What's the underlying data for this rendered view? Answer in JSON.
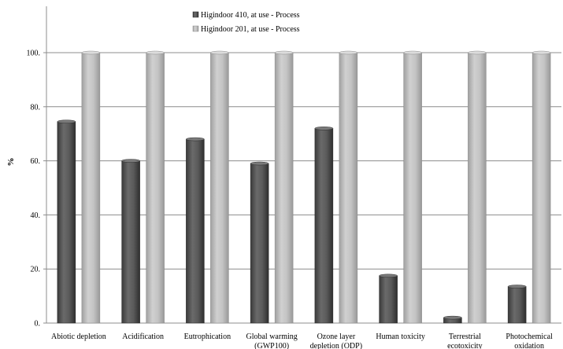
{
  "chart_data": {
    "type": "bar",
    "categories": [
      [
        "Abiotic depletion"
      ],
      [
        "Acidification"
      ],
      [
        "Eutrophication"
      ],
      [
        "Global warming",
        "(GWP100)"
      ],
      [
        "Ozone layer",
        "depletion (ODP)"
      ],
      [
        "Human toxicity"
      ],
      [
        "Terrestrial",
        "ecotoxicity"
      ],
      [
        "Photochemical",
        "oxidation"
      ]
    ],
    "series": [
      {
        "name": "Higindoor 410, at use - Process",
        "color": "#4d4d4d",
        "values": [
          74.5,
          60,
          68,
          59,
          72,
          17.5,
          2,
          13.5
        ]
      },
      {
        "name": "Higindoor 201, at use - Process",
        "color": "#b3b3b3",
        "values": [
          100,
          100,
          100,
          100,
          100,
          100,
          100,
          100
        ]
      }
    ],
    "ylabel": "%",
    "ylim": [
      0,
      100
    ],
    "yticks": [
      "0.",
      "20.",
      "40.",
      "60.",
      "80.",
      "100."
    ],
    "ytick_values": [
      0,
      20,
      40,
      60,
      80,
      100
    ],
    "grid": true,
    "legend_position": "top-left"
  }
}
